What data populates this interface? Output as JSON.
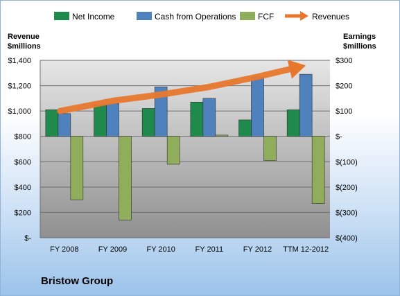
{
  "company": "Bristow Group",
  "chart_data": {
    "type": "bar",
    "categories": [
      "FY 2008",
      "FY 2009",
      "FY 2010",
      "FY 2011",
      "FY 2012",
      "TTM 12-2012"
    ],
    "left_axis": {
      "title_line1": "Revenue",
      "title_line2": "$millions",
      "ylim": [
        0,
        1400
      ],
      "ticks": [
        "$-",
        "$200",
        "$400",
        "$600",
        "$800",
        "$1,000",
        "$1,200",
        "$1,400"
      ]
    },
    "right_axis": {
      "title_line1": "Earnings",
      "title_line2": "$millions",
      "ylim": [
        -400,
        300
      ],
      "ticks": [
        "$(400)",
        "$(300)",
        "$(200)",
        "$(100)",
        "$-",
        "$100",
        "$200",
        "$300"
      ]
    },
    "series": [
      {
        "name": "Net Income",
        "axis": "right",
        "kind": "bar",
        "color": "#1f8a4c",
        "values": [
          105,
          125,
          110,
          135,
          65,
          105
        ]
      },
      {
        "name": "Cash from Operations",
        "axis": "right",
        "kind": "bar",
        "color": "#4f81bd",
        "values": [
          90,
          130,
          195,
          150,
          235,
          245
        ]
      },
      {
        "name": "FCF",
        "axis": "right",
        "kind": "bar",
        "color": "#8fad5a",
        "values": [
          -250,
          -330,
          -110,
          5,
          -95,
          -265
        ]
      },
      {
        "name": "Revenues",
        "axis": "left",
        "kind": "line-arrow",
        "color": "#e8772e",
        "values": [
          1000,
          1080,
          1130,
          1190,
          1270,
          1360
        ]
      }
    ],
    "grid": true,
    "legend_position": "top"
  }
}
